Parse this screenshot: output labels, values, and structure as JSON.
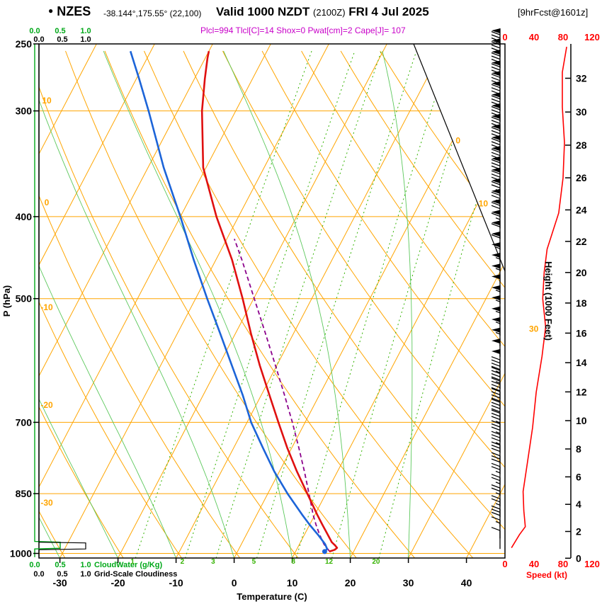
{
  "header": {
    "station_marker": "●",
    "station": "NZES",
    "coordinates": "-38.144°,175.55° (22,100)",
    "valid_main": "Valid 1000 NZDT",
    "valid_utc": "(2100Z)",
    "valid_date": "FRI 4 Jul 2025",
    "forecast_info": "[9hrFcst@1601z]",
    "indices_line": "Plcl=994 Tlcl[C]=14 Shox=0 Pwat[cm]=2 Cape[J]= 107"
  },
  "colors": {
    "grid_orange": "#FFA500",
    "temperature": "#DF1010",
    "dewpoint": "#1C64D8",
    "parcel": "#8B008B",
    "indices_text": "#C800C8",
    "speed": "#FF0000",
    "green_scale": "#00A818",
    "mixing_ratio": "#33B200",
    "moist_adiabat": "#5CC85C",
    "barbs": "#000000"
  },
  "axes": {
    "pressure_axis_label": "P (hPa)",
    "pressure_ticks": [
      250,
      300,
      400,
      500,
      700,
      850,
      1000
    ],
    "temperature_axis_label": "Temperature (C)",
    "temperature_ticks": [
      -30,
      -20,
      -10,
      0,
      10,
      20,
      30,
      40
    ],
    "height_axis_label": "Height (1000 Feet)",
    "height_ticks_kft": [
      0,
      2,
      4,
      6,
      8,
      10,
      12,
      14,
      16,
      18,
      20,
      22,
      24,
      26,
      28,
      30,
      32
    ],
    "speed_axis_label": "Speed (kt)",
    "speed_ticks": [
      0,
      40,
      80,
      120
    ],
    "cloudwater_axis_label": "CloudWater (g/Kg)",
    "cloudwater_ticks": [
      "0.0",
      "0.5",
      "1.0"
    ],
    "cloudiness_axis_label": "Grid-Scale Cloudiness",
    "cloudiness_ticks": [
      "0.0",
      "0.5",
      "1.0"
    ]
  },
  "grid": {
    "isobars_hpa": [
      300,
      400,
      500,
      700,
      850,
      1000
    ],
    "isotherm_step_c": 10,
    "isotherm_range_c": [
      -110,
      40
    ],
    "dry_adiabats_c": [
      -40,
      -30,
      -20,
      -10,
      0,
      10,
      20,
      30,
      40,
      50,
      60,
      70,
      80,
      90,
      100,
      110,
      120
    ],
    "dry_adiabat_labels": [
      10,
      0,
      -10,
      -20,
      -30
    ],
    "moist_adiabats_c": [
      -30,
      -20,
      -10,
      0,
      10,
      20,
      30
    ],
    "mixing_ratio_lines_gkg": [
      1,
      2,
      3,
      5,
      8,
      12,
      20
    ],
    "isotherm_labels_on_diagonal": [
      0,
      10,
      30
    ]
  },
  "chart_data": {
    "type": "line",
    "chart_kind": "skew-t log-p sounding",
    "pressure_range_hpa": [
      250,
      1013
    ],
    "temperature_profile_p_c": [
      [
        995,
        15.8
      ],
      [
        990,
        16.6
      ],
      [
        985,
        16.8
      ],
      [
        978,
        16.2
      ],
      [
        970,
        15.4
      ],
      [
        950,
        14.0
      ],
      [
        925,
        12.2
      ],
      [
        900,
        10.4
      ],
      [
        850,
        6.8
      ],
      [
        800,
        3.0
      ],
      [
        750,
        -0.8
      ],
      [
        700,
        -4.6
      ],
      [
        650,
        -8.6
      ],
      [
        600,
        -12.9
      ],
      [
        550,
        -17.3
      ],
      [
        500,
        -21.9
      ],
      [
        450,
        -27.2
      ],
      [
        400,
        -33.8
      ],
      [
        350,
        -40.5
      ],
      [
        300,
        -45.8
      ],
      [
        275,
        -48.2
      ],
      [
        260,
        -49.6
      ],
      [
        255,
        -50.0
      ]
    ],
    "dewpoint_profile_p_c": [
      [
        995,
        15.0
      ],
      [
        988,
        15.2
      ],
      [
        975,
        14.4
      ],
      [
        950,
        12.3
      ],
      [
        925,
        10.0
      ],
      [
        900,
        7.8
      ],
      [
        850,
        3.4
      ],
      [
        800,
        -0.9
      ],
      [
        750,
        -5.0
      ],
      [
        700,
        -9.3
      ],
      [
        650,
        -13.2
      ],
      [
        600,
        -17.7
      ],
      [
        550,
        -22.6
      ],
      [
        500,
        -28.0
      ],
      [
        450,
        -33.8
      ],
      [
        400,
        -40.0
      ],
      [
        350,
        -47.3
      ],
      [
        300,
        -55.0
      ],
      [
        275,
        -59.5
      ],
      [
        255,
        -63.5
      ]
    ],
    "parcel_path_p_c": [
      [
        994,
        15.8
      ],
      [
        975,
        14.2
      ],
      [
        950,
        12.6
      ],
      [
        925,
        11.1
      ],
      [
        900,
        9.7
      ],
      [
        850,
        7.1
      ],
      [
        800,
        4.3
      ],
      [
        750,
        1.2
      ],
      [
        700,
        -2.2
      ],
      [
        650,
        -6.0
      ],
      [
        600,
        -10.2
      ],
      [
        550,
        -14.8
      ],
      [
        500,
        -19.9
      ],
      [
        450,
        -25.5
      ],
      [
        425,
        -28.7
      ]
    ],
    "wind_speed_profile_p_kt": [
      [
        985,
        9
      ],
      [
        950,
        20
      ],
      [
        930,
        28
      ],
      [
        890,
        26
      ],
      [
        845,
        25
      ],
      [
        780,
        31
      ],
      [
        710,
        38
      ],
      [
        645,
        43
      ],
      [
        585,
        51
      ],
      [
        540,
        56
      ],
      [
        500,
        52
      ],
      [
        465,
        54
      ],
      [
        437,
        58
      ],
      [
        396,
        74
      ],
      [
        360,
        80
      ],
      [
        327,
        82
      ],
      [
        297,
        79
      ],
      [
        270,
        79
      ],
      [
        252,
        85
      ]
    ],
    "wind_barbs_p_kt": [
      [
        988,
        10
      ],
      [
        960,
        15
      ],
      [
        932,
        30
      ],
      [
        906,
        25
      ],
      [
        880,
        25
      ],
      [
        855,
        25
      ],
      [
        830,
        25
      ],
      [
        806,
        30
      ],
      [
        783,
        30
      ],
      [
        761,
        35
      ],
      [
        739,
        35
      ],
      [
        718,
        35
      ],
      [
        697,
        40
      ],
      [
        677,
        40
      ],
      [
        658,
        40
      ],
      [
        639,
        45
      ],
      [
        621,
        45
      ],
      [
        603,
        50
      ],
      [
        586,
        50
      ],
      [
        569,
        55
      ],
      [
        553,
        55
      ],
      [
        537,
        55
      ],
      [
        521,
        55
      ],
      [
        507,
        55
      ],
      [
        492,
        50
      ],
      [
        478,
        55
      ],
      [
        464,
        55
      ],
      [
        451,
        55
      ],
      [
        438,
        60
      ],
      [
        425,
        60
      ],
      [
        413,
        65
      ],
      [
        401,
        70
      ],
      [
        390,
        75
      ],
      [
        379,
        75
      ],
      [
        368,
        80
      ],
      [
        357,
        80
      ],
      [
        347,
        80
      ],
      [
        337,
        80
      ],
      [
        327,
        80
      ],
      [
        318,
        80
      ],
      [
        309,
        80
      ],
      [
        300,
        80
      ],
      [
        291,
        80
      ],
      [
        283,
        80
      ],
      [
        275,
        80
      ],
      [
        267,
        80
      ],
      [
        259,
        80
      ],
      [
        252,
        85
      ]
    ],
    "cloudwater_profile_p_gkg": [
      [
        250,
        0
      ],
      [
        968,
        0
      ],
      [
        970,
        0.5
      ],
      [
        986,
        0.5
      ],
      [
        988,
        0
      ],
      [
        1010,
        0
      ]
    ],
    "cloud_fraction_profile_p": [
      [
        250,
        0
      ],
      [
        970,
        0
      ],
      [
        972,
        1.0
      ],
      [
        988,
        1.0
      ],
      [
        990,
        0
      ],
      [
        1010,
        0
      ]
    ]
  }
}
